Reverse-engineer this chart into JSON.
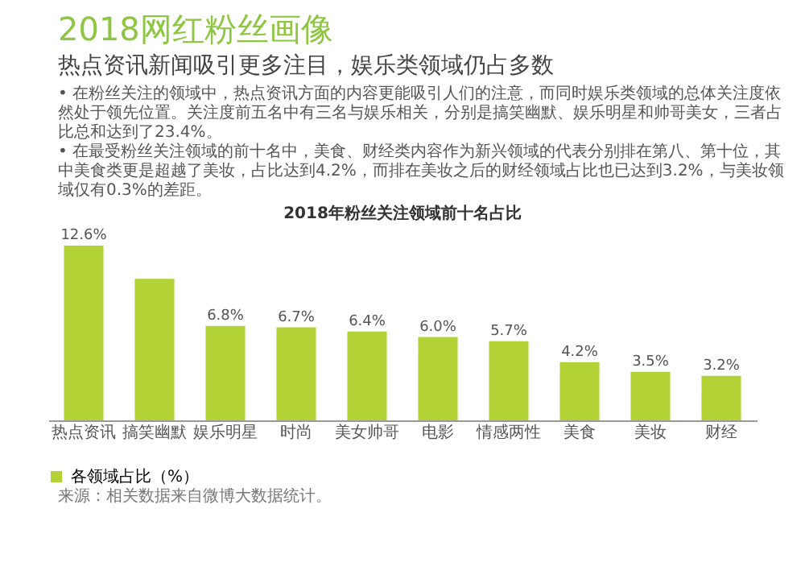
{
  "chart_data": {
    "type": "bar",
    "title": "2018网红粉丝画像",
    "subtitle": "热点资讯新闻吸引更多注目，娱乐类领域仍占多数",
    "annotations": [
      "• 在粉丝关注的领域中，热点资讯方面的内容更能吸引人们的注意，而同时娱乐类领域的总体关注度依然处于领先位置。关注度前五名中有三名与娱乐相关，分别是搞笑幽默、娱乐明星和帅哥美女，三者占比总和达到了23.4%。",
      "• 在最受粉丝关注领域的前十名中，美食、财经类内容作为新兴领域的代表分别排在第八、第十位，其中美食类更是超越了美妆，占比达到4.2%，而排在美妆之后的财经领域占比也已达到3.2%，与美妆领域仅有0.3%的差距。",
      "2018年粉丝关注领域前十名占比",
      "来源：相关数据来自微博大数据统计。"
    ],
    "categories": [
      "热点资讯",
      "搞笑幽默",
      "娱乐明星",
      "时尚",
      "美女帅哥",
      "电影",
      "情感两性",
      "美食",
      "美妆",
      "财经"
    ],
    "series": [
      {
        "name": "各领域占比（%）",
        "color": "#b2d235",
        "values": [
          12.6,
          10.2,
          6.8,
          6.7,
          6.4,
          6.0,
          5.7,
          4.2,
          3.5,
          3.2
        ],
        "value_labels": [
          "12.6%",
          null,
          "6.8%",
          "6.7%",
          "6.4%",
          "6.0%",
          "5.7%",
          "4.2%",
          "3.5%",
          "3.2%"
        ]
      }
    ],
    "legend": "bottom"
  }
}
